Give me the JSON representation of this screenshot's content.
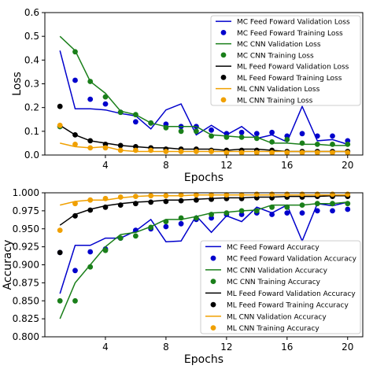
{
  "chart_data": [
    {
      "type": "line",
      "xlabel": "Epochs",
      "ylabel": "Loss",
      "xlim": [
        0,
        21
      ],
      "ylim": [
        0,
        0.6
      ],
      "xticks": [
        4,
        8,
        12,
        16,
        20
      ],
      "xtick_labels": [
        "4",
        "8",
        "12",
        "16",
        "20"
      ],
      "yticks": [
        0,
        0.1,
        0.2,
        0.3,
        0.4,
        0.5,
        0.6
      ],
      "ytick_labels": [
        "0.0",
        "0.1",
        "0.2",
        "0.3",
        "0.4",
        "0.5",
        "0.6"
      ],
      "legend_position": "top-right",
      "x": [
        1,
        2,
        3,
        4,
        5,
        6,
        7,
        8,
        9,
        10,
        11,
        12,
        13,
        14,
        15,
        16,
        17,
        18,
        19,
        20
      ],
      "series": [
        {
          "name": "MC Feed Foward Validation Loss",
          "style": "line",
          "color": "#0000cc",
          "values": [
            0.44,
            0.195,
            0.195,
            0.19,
            0.175,
            0.165,
            0.11,
            0.19,
            0.215,
            0.085,
            0.125,
            0.085,
            0.12,
            0.07,
            0.085,
            0.055,
            0.205,
            0.06,
            0.065,
            0.045
          ]
        },
        {
          "name": "MC Feed Foward Training Loss",
          "style": "dots",
          "color": "#0000cc",
          "values": [
            0.12,
            0.315,
            0.235,
            0.215,
            0.18,
            0.14,
            0.135,
            0.13,
            0.12,
            0.12,
            0.105,
            0.09,
            0.095,
            0.09,
            0.095,
            0.08,
            0.09,
            0.08,
            0.08,
            0.06
          ]
        },
        {
          "name": "MC CNN Validation Loss",
          "style": "line",
          "color": "#1a7f1a",
          "values": [
            0.5,
            0.44,
            0.31,
            0.26,
            0.185,
            0.17,
            0.135,
            0.12,
            0.12,
            0.12,
            0.085,
            0.08,
            0.075,
            0.075,
            0.05,
            0.05,
            0.045,
            0.045,
            0.04,
            0.04
          ]
        },
        {
          "name": "MC CNN Training Loss",
          "style": "dots",
          "color": "#1a7f1a",
          "values": [
            0.12,
            0.435,
            0.31,
            0.245,
            0.18,
            0.17,
            0.135,
            0.115,
            0.1,
            0.1,
            0.08,
            0.075,
            0.075,
            0.07,
            0.055,
            0.065,
            0.05,
            0.045,
            0.045,
            0.045
          ]
        },
        {
          "name": "ML Feed Foward Validation Loss",
          "style": "line",
          "color": "#000000",
          "values": [
            0.125,
            0.085,
            0.06,
            0.05,
            0.04,
            0.035,
            0.03,
            0.03,
            0.025,
            0.025,
            0.025,
            0.02,
            0.025,
            0.025,
            0.02,
            0.015,
            0.015,
            0.015,
            0.015,
            0.015
          ]
        },
        {
          "name": "ML Feed Foward Training Loss",
          "style": "dots",
          "color": "#000000",
          "values": [
            0.205,
            0.085,
            0.06,
            0.045,
            0.04,
            0.035,
            0.03,
            0.025,
            0.025,
            0.025,
            0.02,
            0.02,
            0.02,
            0.02,
            0.02,
            0.015,
            0.015,
            0.015,
            0.015,
            0.015
          ]
        },
        {
          "name": "ML CNN Validation Loss",
          "style": "line",
          "color": "#f0a000",
          "values": [
            0.05,
            0.035,
            0.03,
            0.035,
            0.02,
            0.015,
            0.015,
            0.015,
            0.015,
            0.015,
            0.015,
            0.015,
            0.015,
            0.015,
            0.015,
            0.015,
            0.015,
            0.015,
            0.015,
            0.015
          ]
        },
        {
          "name": "ML CNN Training Loss",
          "style": "dots",
          "color": "#f0a000",
          "values": [
            0.125,
            0.045,
            0.03,
            0.03,
            0.02,
            0.02,
            0.02,
            0.015,
            0.015,
            0.015,
            0.015,
            0.01,
            0.01,
            0.01,
            0.01,
            0.01,
            0.01,
            0.01,
            0.01,
            0.01
          ]
        }
      ]
    },
    {
      "type": "line",
      "xlabel": "Epochs",
      "ylabel": "Accuracy",
      "xlim": [
        0,
        21
      ],
      "ylim": [
        0.8,
        1.0
      ],
      "xticks": [
        4,
        8,
        12,
        16,
        20
      ],
      "xtick_labels": [
        "4",
        "8",
        "12",
        "16",
        "20"
      ],
      "yticks": [
        0.8,
        0.825,
        0.85,
        0.875,
        0.9,
        0.925,
        0.95,
        0.975,
        1.0
      ],
      "ytick_labels": [
        "0.800",
        "0.825",
        "0.850",
        "0.875",
        "0.900",
        "0.925",
        "0.950",
        "0.975",
        "1.000"
      ],
      "legend_position": "bottom-right",
      "x": [
        1,
        2,
        3,
        4,
        5,
        6,
        7,
        8,
        9,
        10,
        11,
        12,
        13,
        14,
        15,
        16,
        17,
        18,
        19,
        20
      ],
      "series": [
        {
          "name": "MC Feed Foward Accuracy",
          "style": "line",
          "color": "#0000cc",
          "values": [
            0.86,
            0.927,
            0.927,
            0.937,
            0.937,
            0.947,
            0.963,
            0.932,
            0.933,
            0.968,
            0.945,
            0.968,
            0.96,
            0.98,
            0.972,
            0.983,
            0.933,
            0.985,
            0.982,
            0.987
          ]
        },
        {
          "name": "MC Feed Foward Validation Accuracy",
          "style": "dots",
          "color": "#0000cc",
          "values": [
            0.917,
            0.892,
            0.918,
            0.922,
            0.937,
            0.948,
            0.95,
            0.953,
            0.957,
            0.963,
            0.965,
            0.97,
            0.97,
            0.972,
            0.97,
            0.972,
            0.972,
            0.975,
            0.975,
            0.977
          ]
        },
        {
          "name": "MC CNN Validation Accuracy",
          "style": "line",
          "color": "#1a7f1a",
          "values": [
            0.825,
            0.875,
            0.9,
            0.925,
            0.942,
            0.945,
            0.953,
            0.963,
            0.963,
            0.967,
            0.972,
            0.973,
            0.975,
            0.976,
            0.983,
            0.983,
            0.983,
            0.985,
            0.985,
            0.987
          ]
        },
        {
          "name": "MC CNN Training Accuracy",
          "style": "dots",
          "color": "#1a7f1a",
          "values": [
            0.85,
            0.85,
            0.897,
            0.92,
            0.937,
            0.94,
            0.952,
            0.96,
            0.965,
            0.965,
            0.97,
            0.972,
            0.975,
            0.975,
            0.98,
            0.98,
            0.983,
            0.985,
            0.985,
            0.985
          ]
        },
        {
          "name": "ML Feed Foward Validation Accuracy",
          "style": "line",
          "color": "#000000",
          "values": [
            0.955,
            0.97,
            0.977,
            0.982,
            0.985,
            0.987,
            0.988,
            0.99,
            0.99,
            0.991,
            0.992,
            0.993,
            0.993,
            0.994,
            0.994,
            0.995,
            0.995,
            0.995,
            0.996,
            0.996
          ]
        },
        {
          "name": "ML Feed Foward Training Accuracy",
          "style": "dots",
          "color": "#000000",
          "values": [
            0.917,
            0.968,
            0.976,
            0.98,
            0.983,
            0.985,
            0.987,
            0.988,
            0.989,
            0.99,
            0.991,
            0.992,
            0.992,
            0.993,
            0.993,
            0.994,
            0.994,
            0.995,
            0.995,
            0.995
          ]
        },
        {
          "name": "ML CNN Validation Accuracy",
          "style": "line",
          "color": "#f0a000",
          "values": [
            0.983,
            0.988,
            0.99,
            0.99,
            0.993,
            0.995,
            0.996,
            0.996,
            0.996,
            0.997,
            0.997,
            0.997,
            0.997,
            0.997,
            0.997,
            0.997,
            0.997,
            0.997,
            0.997,
            0.997
          ]
        },
        {
          "name": "ML CNN Training Accuracy",
          "style": "dots",
          "color": "#f0a000",
          "values": [
            0.948,
            0.985,
            0.99,
            0.992,
            0.994,
            0.995,
            0.996,
            0.996,
            0.997,
            0.997,
            0.997,
            0.997,
            0.997,
            0.998,
            0.998,
            0.998,
            0.998,
            0.998,
            0.998,
            0.998
          ]
        }
      ]
    }
  ]
}
